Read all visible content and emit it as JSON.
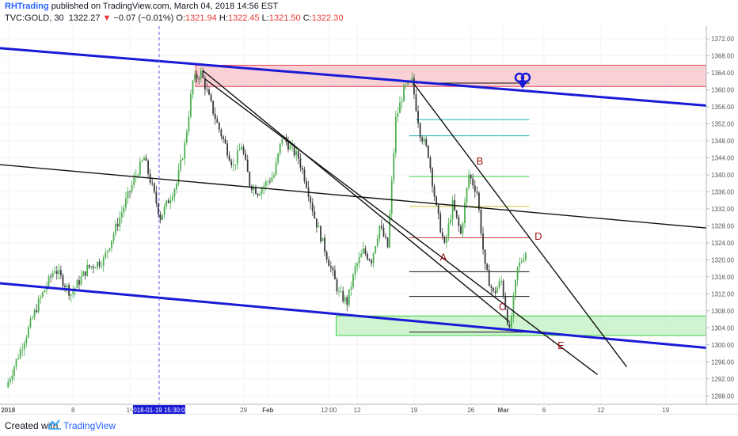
{
  "header": {
    "author": "RHTrading",
    "published_text": "published on TradingView.com, March 04, 2018 14:56 EST",
    "symbol": "TVC:GOLD, 30",
    "last": "1322.27",
    "arrow": "▼",
    "change": "−0.07 (−0.01%)",
    "o_label": "O:",
    "o_value": "1321.94",
    "h_label": "H:",
    "h_value": "1322.45",
    "l_label": "L:",
    "l_value": "1321.50",
    "c_label": "C:",
    "c_value": "1322.30"
  },
  "footer": {
    "created_with": "Created with",
    "brand": "TradingView"
  },
  "colors": {
    "up": "#4caf50",
    "down": "#3a3a3a",
    "channel": "#1a1ad6",
    "trend": "#111111",
    "resistance_fill": "#f8c8cc",
    "resistance_stroke": "#e84a5a",
    "support_fill": "#c8f2c8",
    "support_stroke": "#3ecf3e",
    "fib": [
      "#111111",
      "#19b2b2",
      "#19b2b2",
      "#3ecf3e",
      "#c9c92e",
      "#d13a3a",
      "#111111",
      "#111111"
    ],
    "wave_label": "#9b1111",
    "marker": "#1a1ad6",
    "cursor_line": "#5a5ae6"
  },
  "chart_data": {
    "type": "candlestick",
    "symbol": "TVC:GOLD",
    "interval": "30",
    "ylim": [
      1286,
      1375
    ],
    "y_ticks": [
      1288.0,
      1292.0,
      1296.0,
      1300.0,
      1304.0,
      1308.0,
      1312.0,
      1316.0,
      1320.0,
      1324.0,
      1328.0,
      1332.0,
      1336.0,
      1340.0,
      1344.0,
      1348.0,
      1352.0,
      1356.0,
      1360.0,
      1364.0,
      1368.0,
      1372.0
    ],
    "x_ticks": [
      "2018",
      "8",
      "15",
      "2018-01-19 15:30:00",
      "29",
      "Feb",
      "12:00",
      "12",
      "19",
      "26",
      "Mar",
      "6",
      "12",
      "19"
    ],
    "x_tick_days": [
      0,
      8,
      15,
      18.6,
      29,
      32,
      39.5,
      43,
      50,
      57,
      61,
      66,
      73,
      81
    ],
    "last_date_day": 63.9,
    "price_path": [
      [
        0,
        1290
      ],
      [
        2,
        1300
      ],
      [
        4,
        1310
      ],
      [
        6,
        1318
      ],
      [
        8,
        1312
      ],
      [
        10,
        1318
      ],
      [
        12,
        1320
      ],
      [
        14,
        1330
      ],
      [
        16,
        1340
      ],
      [
        17,
        1344
      ],
      [
        18,
        1337
      ],
      [
        19,
        1330
      ],
      [
        21,
        1338
      ],
      [
        22,
        1347
      ],
      [
        23,
        1362
      ],
      [
        24,
        1364
      ],
      [
        26,
        1352
      ],
      [
        28,
        1342
      ],
      [
        29,
        1347
      ],
      [
        30,
        1338
      ],
      [
        31,
        1336
      ],
      [
        33,
        1340
      ],
      [
        34,
        1349
      ],
      [
        36,
        1344
      ],
      [
        37,
        1338
      ],
      [
        38,
        1330
      ],
      [
        39,
        1324
      ],
      [
        40,
        1318
      ],
      [
        41,
        1312
      ],
      [
        42,
        1310
      ],
      [
        43,
        1318
      ],
      [
        44,
        1322
      ],
      [
        45,
        1320
      ],
      [
        46,
        1328
      ],
      [
        47,
        1323
      ],
      [
        48,
        1353
      ],
      [
        49,
        1360
      ],
      [
        50,
        1362
      ],
      [
        51,
        1350
      ],
      [
        52,
        1345
      ],
      [
        53,
        1332
      ],
      [
        54,
        1323
      ],
      [
        55,
        1333
      ],
      [
        56,
        1326
      ],
      [
        57,
        1340
      ],
      [
        58,
        1336
      ],
      [
        59,
        1318
      ],
      [
        60,
        1312
      ],
      [
        61,
        1315
      ],
      [
        62,
        1303
      ],
      [
        63,
        1318
      ],
      [
        64,
        1322
      ]
    ],
    "lines": [
      {
        "name": "upper channel",
        "from": [
          -1,
          1369.8
        ],
        "to": [
          86,
          1356.3
        ]
      },
      {
        "name": "lower channel",
        "from": [
          -1,
          1314.5
        ],
        "to": [
          86,
          1299.3
        ]
      },
      {
        "name": "midline",
        "from": [
          -1,
          1342.4
        ],
        "to": [
          86,
          1327.5
        ]
      },
      {
        "name": "trendline 1",
        "from": [
          24.3,
          1362.5
        ],
        "to": [
          72.6,
          1293.0
        ]
      },
      {
        "name": "trendline 2",
        "from": [
          24.0,
          1364.5
        ],
        "to": [
          61.7,
          1305.5
        ]
      },
      {
        "name": "trendline 3",
        "from": [
          49.9,
          1361.6
        ],
        "to": [
          76.2,
          1294.8
        ]
      }
    ],
    "zones": [
      {
        "name": "resistance",
        "day_from": 23.1,
        "day_to": 86,
        "high": 1365.8,
        "low": 1360.8
      },
      {
        "name": "support",
        "day_from": 40.4,
        "day_to": 86,
        "high": 1306.8,
        "low": 1302.2
      }
    ],
    "fib_levels": [
      {
        "price": 1361.6,
        "day_from": 50.2
      },
      {
        "price": 1353.0,
        "day_from": 50.2
      },
      {
        "price": 1349.2,
        "day_from": 49.4
      },
      {
        "price": 1339.6,
        "day_from": 49.4
      },
      {
        "price": 1332.6,
        "day_from": 49.4
      },
      {
        "price": 1325.2,
        "day_from": 49.4
      },
      {
        "price": 1317.2,
        "day_from": 49.4
      },
      {
        "price": 1311.4,
        "day_from": 49.4
      },
      {
        "price": 1303.0,
        "day_from": 49.4
      }
    ],
    "wave_labels": [
      {
        "text": "A",
        "day": 53.6,
        "price": 1319.8
      },
      {
        "text": "B",
        "day": 58.1,
        "price": 1342.4
      },
      {
        "text": "C",
        "day": 60.9,
        "price": 1308.2
      },
      {
        "text": "D",
        "day": 65.3,
        "price": 1324.7
      },
      {
        "text": "E",
        "day": 68.1,
        "price": 1299.0
      }
    ],
    "vertical_marker_day": 18.6
  }
}
